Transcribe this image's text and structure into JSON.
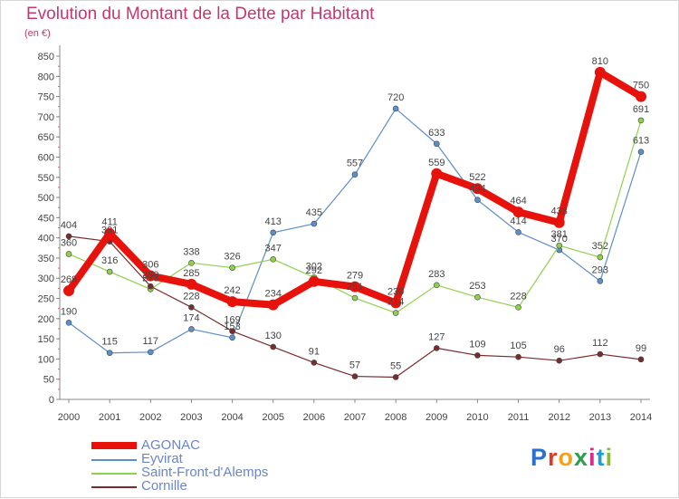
{
  "title": "Evolution du Montant de la Dette par Habitant",
  "unit": "(en €)",
  "logo": {
    "text": "Proxiti",
    "letter_colors": [
      "#2b6fd0",
      "#e03a25",
      "#f2a21b",
      "#2e9e4c",
      "#d92a8d",
      "#1a9fd6",
      "#8bbf2a"
    ]
  },
  "chart_data": {
    "type": "line",
    "title": "Evolution du Montant de la Dette par Habitant",
    "ylabel": "(en €)",
    "xlabel": "",
    "ylim": [
      0,
      850
    ],
    "y_ticks": [
      0,
      50,
      100,
      150,
      200,
      250,
      300,
      350,
      400,
      450,
      500,
      550,
      600,
      650,
      700,
      750,
      800,
      850
    ],
    "grid": false,
    "legend_position": "bottom-left",
    "x": [
      2000,
      2001,
      2002,
      2003,
      2004,
      2005,
      2006,
      2007,
      2008,
      2009,
      2010,
      2011,
      2012,
      2013,
      2014
    ],
    "series": [
      {
        "name": "AGONAC",
        "color": "#e8120c",
        "values": [
          269,
          411,
          306,
          285,
          242,
          234,
          292,
          279,
          239,
          559,
          522,
          464,
          438,
          810,
          750
        ],
        "labels": [
          "269",
          "411",
          "306",
          "285",
          "242",
          "234",
          "292",
          "279",
          "239",
          "559",
          "522",
          "464",
          "438",
          "810",
          "750"
        ]
      },
      {
        "name": "Eyvirat",
        "color": "#5d8fc9",
        "values": [
          190,
          115,
          117,
          174,
          153,
          413,
          435,
          557,
          720,
          633,
          494,
          414,
          370,
          293,
          613
        ],
        "labels": [
          "190",
          "115",
          "117",
          "174",
          "153",
          "413",
          "435",
          "557",
          "720",
          "633",
          "494",
          "414",
          "370",
          "293",
          "613"
        ]
      },
      {
        "name": "Saint-Front-d'Alemps",
        "color": "#8fd14f",
        "values": [
          360,
          316,
          273,
          338,
          326,
          347,
          302,
          251,
          214,
          283,
          253,
          228,
          381,
          352,
          691
        ],
        "labels": [
          "360",
          "316",
          "273",
          "338",
          "326",
          "347",
          "302",
          "251",
          "214",
          "283",
          "253",
          "228",
          "381",
          "352",
          "691"
        ]
      },
      {
        "name": "Cornille",
        "color": "#7a2b2b",
        "values": [
          404,
          391,
          280,
          228,
          169,
          130,
          91,
          57,
          55,
          127,
          109,
          105,
          96,
          112,
          99
        ],
        "labels": [
          "404",
          "391",
          "280",
          "228",
          "169",
          "130",
          "91",
          "57",
          "55",
          "127",
          "109",
          "105",
          "96",
          "112",
          "99"
        ]
      }
    ]
  }
}
